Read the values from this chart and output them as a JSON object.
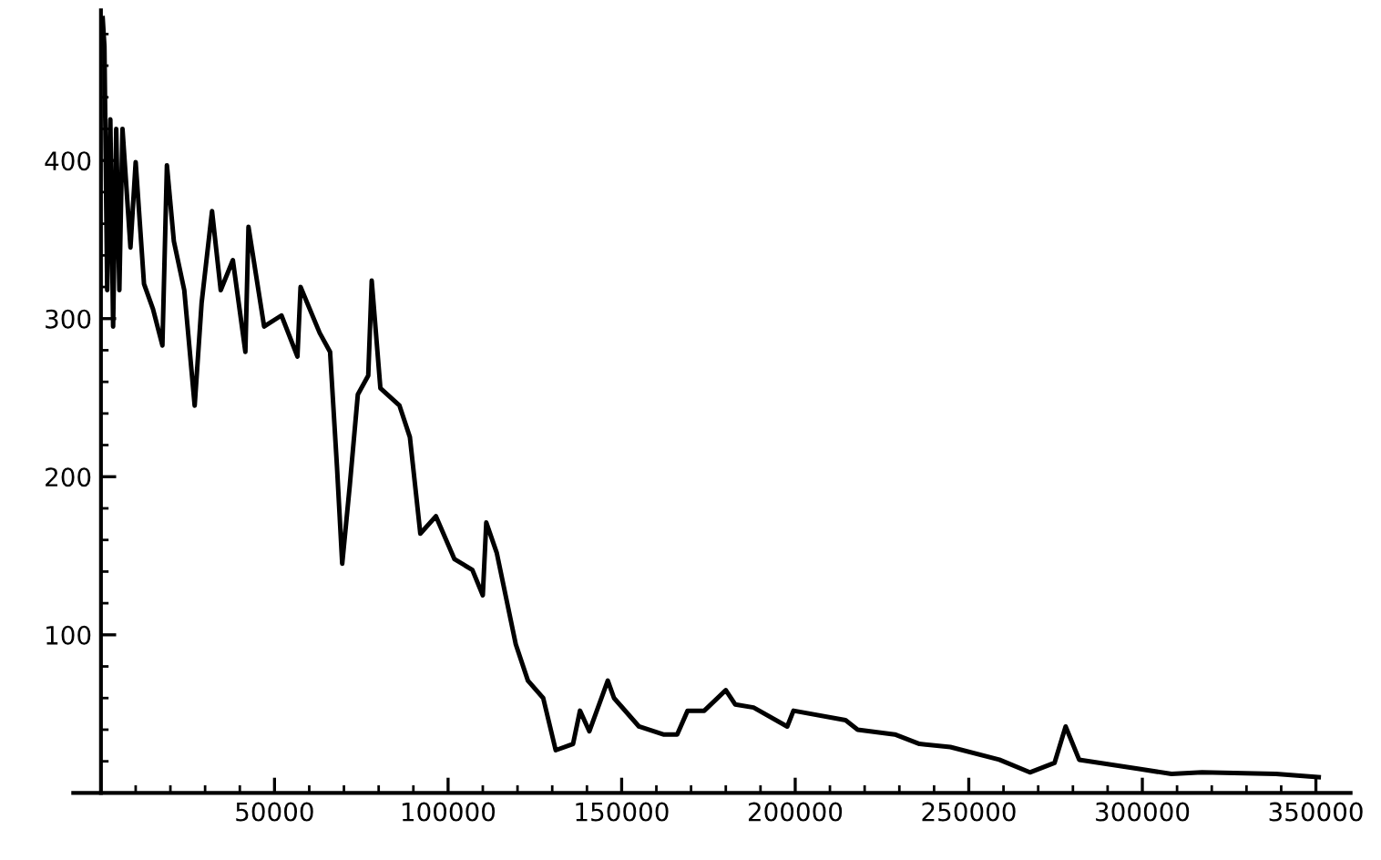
{
  "chart_data": {
    "type": "line",
    "xlim": [
      -8000,
      360000
    ],
    "ylim": [
      0,
      495
    ],
    "xticks": [
      {
        "value": 10000,
        "label": null
      },
      {
        "value": 20000,
        "label": null
      },
      {
        "value": 30000,
        "label": null
      },
      {
        "value": 40000,
        "label": null
      },
      50000,
      {
        "value": 60000,
        "label": null
      },
      {
        "value": 70000,
        "label": null
      },
      {
        "value": 80000,
        "label": null
      },
      {
        "value": 90000,
        "label": null
      },
      100000,
      {
        "value": 110000,
        "label": null
      },
      {
        "value": 120000,
        "label": null
      },
      {
        "value": 130000,
        "label": null
      },
      {
        "value": 140000,
        "label": null
      },
      150000,
      {
        "value": 160000,
        "label": null
      },
      {
        "value": 170000,
        "label": null
      },
      {
        "value": 180000,
        "label": null
      },
      {
        "value": 190000,
        "label": null
      },
      200000,
      {
        "value": 210000,
        "label": null
      },
      {
        "value": 220000,
        "label": null
      },
      {
        "value": 230000,
        "label": null
      },
      {
        "value": 240000,
        "label": null
      },
      250000,
      {
        "value": 260000,
        "label": null
      },
      {
        "value": 270000,
        "label": null
      },
      {
        "value": 280000,
        "label": null
      },
      {
        "value": 290000,
        "label": null
      },
      300000,
      {
        "value": 310000,
        "label": null
      },
      {
        "value": 320000,
        "label": null
      },
      {
        "value": 330000,
        "label": null
      },
      {
        "value": 340000,
        "label": null
      },
      350000
    ],
    "yticks": [
      {
        "value": 20,
        "label": null
      },
      {
        "value": 40,
        "label": null
      },
      {
        "value": 60,
        "label": null
      },
      {
        "value": 80,
        "label": null
      },
      100,
      {
        "value": 120,
        "label": null
      },
      {
        "value": 140,
        "label": null
      },
      {
        "value": 160,
        "label": null
      },
      {
        "value": 180,
        "label": null
      },
      200,
      {
        "value": 220,
        "label": null
      },
      {
        "value": 240,
        "label": null
      },
      {
        "value": 260,
        "label": null
      },
      {
        "value": 280,
        "label": null
      },
      300,
      {
        "value": 320,
        "label": null
      },
      {
        "value": 340,
        "label": null
      },
      {
        "value": 360,
        "label": null
      },
      {
        "value": 380,
        "label": null
      },
      400,
      {
        "value": 420,
        "label": null
      },
      {
        "value": 440,
        "label": null
      },
      {
        "value": 460,
        "label": null
      },
      {
        "value": 480,
        "label": null
      }
    ],
    "grid": false,
    "legend": false,
    "marker": "none",
    "line_style": "solid",
    "series": [
      {
        "color": "#000000",
        "x": [
          500,
          1000,
          1800,
          2700,
          3500,
          4400,
          5300,
          6200,
          8500,
          10000,
          12400,
          15000,
          17700,
          19000,
          21000,
          24000,
          27000,
          29000,
          32000,
          34500,
          38000,
          41600,
          42500,
          47000,
          52000,
          56600,
          57500,
          63000,
          66000,
          68000,
          69500,
          71700,
          74000,
          77000,
          78000,
          80500,
          86000,
          89000,
          92000,
          96500,
          101800,
          107000,
          110000,
          111000,
          114000,
          119500,
          123000,
          127400,
          131000,
          136000,
          138000,
          140700,
          146000,
          147800,
          155000,
          162000,
          166000,
          169000,
          173800,
          180000,
          182700,
          188000,
          197700,
          199500,
          214500,
          218000,
          228700,
          235800,
          244700,
          258800,
          267600,
          274700,
          277900,
          281800,
          299500,
          308400,
          317200,
          338500,
          350800
        ],
        "values": [
          490,
          472,
          318,
          426,
          295,
          420,
          318,
          420,
          345,
          399,
          322,
          306,
          283,
          397,
          349,
          318,
          245,
          310,
          368,
          318,
          337,
          279,
          358,
          295,
          302,
          276,
          320,
          291,
          279,
          206,
          145,
          195,
          252,
          264,
          324,
          256,
          245,
          225,
          164,
          175,
          148,
          141,
          125,
          171,
          152,
          94,
          71,
          60,
          27,
          31,
          52,
          39,
          71,
          60,
          42,
          37,
          37,
          52,
          52,
          65,
          56,
          54,
          42,
          52,
          46,
          40,
          37,
          31,
          29,
          21,
          13,
          19,
          42,
          21,
          15,
          12,
          13,
          12,
          10
        ]
      }
    ]
  }
}
